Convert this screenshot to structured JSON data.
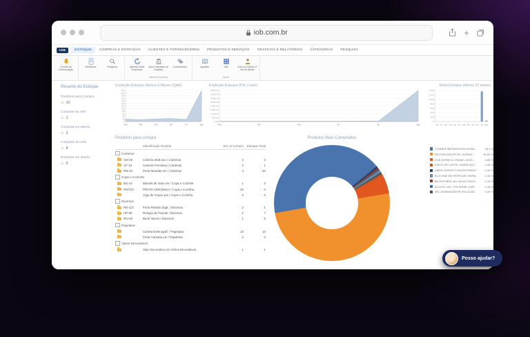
{
  "browser": {
    "url": "iob.com.br"
  },
  "menu": {
    "logo": "IOB",
    "tabs": [
      {
        "label": "ESTOQUE",
        "active": true
      },
      {
        "label": "COMPRAS E ENTRADAS",
        "active": false
      },
      {
        "label": "CLIENTES E FORNECEDORES",
        "active": false
      },
      {
        "label": "PRODUTOS E SERVIÇOS",
        "active": false
      },
      {
        "label": "GRÁFICOS E RELATÓRIOS",
        "active": false
      },
      {
        "label": "CATEGORIAS",
        "active": false
      },
      {
        "label": "PESQUISA",
        "active": false
      }
    ]
  },
  "ribbon": {
    "items": [
      {
        "label": "Central de Comunicação",
        "icon": "bell-icon"
      },
      {
        "label": "Relatórios",
        "icon": "report-icon"
      },
      {
        "label": "Pesquisa",
        "icon": "search-icon"
      },
      {
        "label": "Alternar entre Empresas",
        "icon": "refresh-icon"
      },
      {
        "label": "Usar Empresas de Trabalho",
        "icon": "bank-icon"
      },
      {
        "label": "Comentários",
        "icon": "comments-icon"
      },
      {
        "label": "Apostila",
        "icon": "book-icon"
      },
      {
        "label": "Site",
        "icon": "site-icon"
      },
      {
        "label": "Área do Cliente 2ª Via de Boleto",
        "icon": "person-icon"
      }
    ],
    "groups": {
      "empresas": "Minhas Empresas",
      "ajuda": "Ajuda"
    }
  },
  "sidebar": {
    "title": "Resumo do Estoque",
    "items": [
      {
        "label": "Produtos para Compra",
        "value": "10"
      },
      {
        "label": "Compras do mês",
        "value": "1"
      },
      {
        "label": "Compras em aberto",
        "value": "2"
      },
      {
        "label": "Cotações do mês",
        "value": "8"
      },
      {
        "label": "Entradas em aberto",
        "value": "0"
      }
    ]
  },
  "main": {
    "table_title": "Produtos para compra"
  },
  "table": {
    "headers": [
      "Identificação Produto",
      "Est. p/ Compra",
      "Estoque Atual"
    ],
    "groups": [
      {
        "name": "Carteiras",
        "rows": [
          [
            "CM-20",
            "Carteira Mult-uso / Carteiras",
            "2",
            "3"
          ],
          [
            "CF-10",
            "Carteira Feminina / Carteiras",
            "2",
            "1"
          ],
          [
            "PM-10",
            "Porta Moedas em / Carteiras",
            "3",
            "-10"
          ]
        ]
      },
      {
        "name": "Copa e Cozinha",
        "rows": [
          [
            "BG-10",
            "Baixela de Galo em / Copa e Cozinha",
            "1",
            "0"
          ],
          [
            "PRATO",
            "PRATO CERÂMICA / Copa e Cozinha",
            "20",
            "0"
          ],
          [
            "",
            "Jogo de Copos par / Copa e Cozinha",
            "5",
            "0"
          ]
        ]
      },
      {
        "name": "Diversos",
        "rows": [
          [
            "PD-110",
            "Porta Retrato Digit. / Diversos",
            "2",
            "1"
          ],
          [
            "HP-80",
            "Relógio de Parede / Diversos",
            "2",
            "7"
          ],
          [
            "WV-40",
            "Book Vazios / Diversos",
            "1",
            "5"
          ]
        ]
      },
      {
        "name": "Papelaria",
        "rows": [
          [
            "",
            "Caneta Esferográf. / Papelaria",
            "10",
            "10"
          ],
          [
            "",
            "Porta Canetas em / Papelaria",
            "2",
            "0"
          ]
        ]
      },
      {
        "name": "Vasos Decorativos",
        "rows": [
          [
            "",
            "Vaso Decorativo em Vidros Decorativos",
            "1",
            "1"
          ]
        ]
      }
    ]
  },
  "chart_data": [
    {
      "type": "area",
      "title": "Evolução Estoque últimos 6 Meses (Qtde)",
      "x": [
        "mar",
        "abr",
        "mai",
        "jun",
        "jul",
        "ago"
      ],
      "values": [
        18,
        14,
        20,
        24,
        16,
        238
      ],
      "ylim": [
        0,
        240
      ],
      "yticks": [
        "240",
        "220",
        "200",
        "180",
        "160",
        "140",
        "120",
        "100",
        "80",
        "60",
        "40",
        "20",
        "0"
      ],
      "fill": "#c2d2e2",
      "stroke": "#9db4ca"
    },
    {
      "type": "area",
      "title": "Evolução Estoque (Por Custo)",
      "x": [
        "mar",
        "abr",
        "mai",
        "jun",
        "jul",
        "ago"
      ],
      "values": [
        50,
        50,
        50,
        50,
        80,
        4800
      ],
      "ylim": [
        0,
        4800
      ],
      "yticks": [
        "4.800,00",
        "4.200,00",
        "3.600,00",
        "3.000,00",
        "2.400,00",
        "1.800,00",
        "1.200,00",
        "600,00",
        "0,00"
      ],
      "fill": "#c2d2e2",
      "stroke": "#9db4ca"
    },
    {
      "type": "bar",
      "title": "Nível Estoque últimos 12 meses",
      "x": [
        "set",
        "out",
        "nov",
        "dez",
        "jan",
        "fev",
        "mar",
        "abr",
        "mai",
        "jun",
        "jul",
        "ago"
      ],
      "values": [
        3,
        3,
        3,
        3,
        3,
        3,
        3,
        3,
        3,
        3,
        1360,
        40
      ],
      "ylim": [
        0,
        1400
      ],
      "yticks": [
        "1.400",
        "1.200",
        "1.000",
        "800",
        "600",
        "400",
        "200",
        "0"
      ],
      "fill": "#7fa3c7"
    },
    {
      "type": "donut",
      "title": "Produtos Mais Comprados",
      "start_angle": 260,
      "hole": 0.45,
      "slices": [
        {
          "name": "TONNER IMPRESSORA HP05A...",
          "color": "#4a74ae",
          "pct": 38.4,
          "pct_label": "38,4 %"
        },
        {
          "name": "REVITALIZADOR DE JUNTAS...",
          "color": "#f0912d",
          "pct": 45.83,
          "pct_label": "45,83 %"
        },
        {
          "name": "CHÁ VERDE A GRANEL 500G...",
          "color": "#e2571f",
          "pct": 4.83,
          "pct_label": "4,83 %"
        },
        {
          "name": "DISCO DE CORTE 110MM AÇO...",
          "color": "#c05a1a",
          "pct": 0.46,
          "pct_label": "0,46 %"
        },
        {
          "name": "LIMPA VIDROS CONCENTRADO...",
          "color": "#27426b",
          "pct": 0.46,
          "pct_label": "0,46 %"
        },
        {
          "name": "SILICONE EM PERFUME HIDRA...",
          "color": "#7d8b99",
          "pct": 0.46,
          "pct_label": "0,46 %"
        },
        {
          "name": "MICROFIBRA 40X 40CM TOALH...",
          "color": "#8c3a1f",
          "pct": 0.46,
          "pct_label": "0,46 %"
        },
        {
          "name": "ÁLCOOL GEL 70% 500ML LIMP...",
          "color": "#3d6ea5",
          "pct": 0.46,
          "pct_label": "0,46 %"
        },
        {
          "name": "GEL HIGIENIZADOR SOLUÇÃO...",
          "color": "#44546a",
          "pct": 0.46,
          "pct_label": "0,46 %"
        }
      ],
      "draw_order": [
        0,
        4,
        6,
        7,
        5,
        8,
        3,
        2,
        1
      ]
    }
  ],
  "chat": {
    "label": "Posso ajudar?"
  }
}
